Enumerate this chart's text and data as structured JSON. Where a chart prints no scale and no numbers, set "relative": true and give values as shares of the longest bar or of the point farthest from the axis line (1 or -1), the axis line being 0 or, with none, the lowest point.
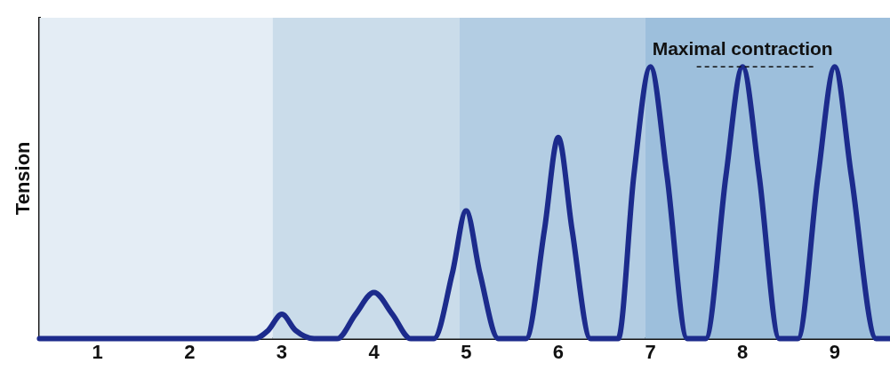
{
  "chart_data": {
    "type": "line",
    "relative": true,
    "ylabel": "Tension",
    "x": [
      0.37,
      2.7,
      2.85,
      3,
      3.15,
      3.35,
      3.6,
      3.8,
      4,
      4.2,
      4.4,
      4.65,
      4.85,
      5,
      5.15,
      5.35,
      5.65,
      5.85,
      6,
      6.15,
      6.35,
      6.65,
      6.82,
      7,
      7.18,
      7.4,
      7.6,
      7.82,
      8,
      8.18,
      8.4,
      8.6,
      8.82,
      9,
      9.18,
      9.45,
      9.6
    ],
    "series": [
      {
        "color": "#1c2b8c",
        "values": [
          0,
          0,
          0.03,
          0.09,
          0.03,
          0,
          0,
          0.09,
          0.17,
          0.09,
          0,
          0,
          0.24,
          0.47,
          0.24,
          0,
          0,
          0.4,
          0.74,
          0.4,
          0,
          0,
          0.6,
          1,
          0.6,
          0,
          0,
          0.6,
          1,
          0.6,
          0,
          0,
          0.6,
          1,
          0.6,
          0,
          0
        ]
      }
    ],
    "xlim": [
      0.37,
      9.6
    ],
    "xticks": [
      1,
      2,
      3,
      4,
      5,
      6,
      7,
      8,
      9
    ],
    "bands": [
      {
        "axis": "x",
        "from": 0.37,
        "to": 2.9,
        "color": "#e4edf5"
      },
      {
        "axis": "x",
        "from": 2.9,
        "to": 4.93,
        "color": "#cadcea"
      },
      {
        "axis": "x",
        "from": 4.93,
        "to": 6.94,
        "color": "#b3cde3"
      },
      {
        "axis": "x",
        "from": 6.94,
        "to": 9.6,
        "color": "#9dbfdc"
      }
    ],
    "annotations": [
      {
        "text": "Maximal contraction",
        "x": 8,
        "y": 1
      }
    ],
    "grid": false,
    "legend": false,
    "marker": "none",
    "line_style": "solid"
  }
}
